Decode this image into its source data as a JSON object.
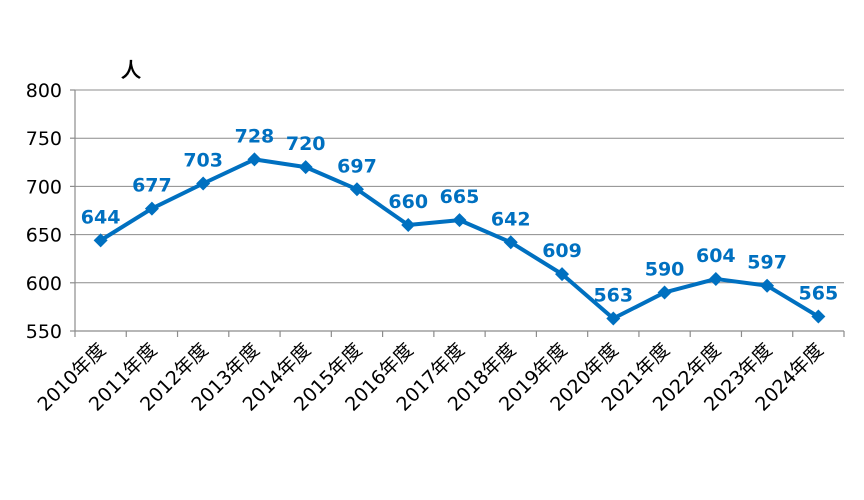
{
  "chart_data": {
    "type": "line",
    "unit_label": "人",
    "categories": [
      "2010年度",
      "2011年度",
      "2012年度",
      "2013年度",
      "2014年度",
      "2015年度",
      "2016年度",
      "2017年度",
      "2018年度",
      "2019年度",
      "2020年度",
      "2021年度",
      "2022年度",
      "2023年度",
      "2024年度"
    ],
    "series": [
      {
        "values": [
          644,
          677,
          703,
          728,
          720,
          697,
          660,
          665,
          642,
          609,
          563,
          590,
          604,
          597,
          565
        ]
      }
    ],
    "ylim": [
      550,
      800
    ],
    "yticks": [
      550,
      600,
      650,
      700,
      750,
      800
    ],
    "grid": true,
    "legend": "none",
    "series_color": "#0070c0",
    "marker": "diamond"
  }
}
